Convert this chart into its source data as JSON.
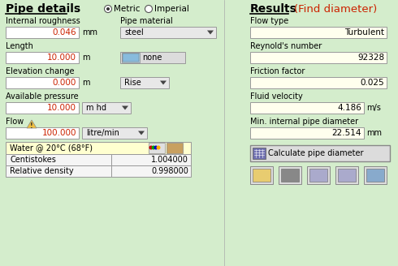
{
  "bg_color": "#d4edcc",
  "title_left": "Pipe details",
  "title_right": "Results",
  "title_right_sub": "(Find diameter)",
  "metric_label": "Metric",
  "imperial_label": "Imperial",
  "left_labels": [
    "Internal roughness",
    "Pipe material",
    "Length",
    "Elevation change",
    "Available pressure",
    "Flow"
  ],
  "left_values": [
    "0.046",
    "steel",
    "10.000",
    "0.000",
    "10.000",
    "100.000"
  ],
  "left_units": [
    "mm",
    "",
    "m",
    "m",
    "",
    ""
  ],
  "dropdown_rise": "Rise",
  "dropdown_mhd": "m hd",
  "dropdown_litre": "litre/min",
  "btn_none": "none",
  "right_fields": [
    {
      "label": "Flow type",
      "value": "Turbulent",
      "unit": ""
    },
    {
      "label": "Reynold's number",
      "value": "92328",
      "unit": ""
    },
    {
      "label": "Friction factor",
      "value": "0.025",
      "unit": ""
    },
    {
      "label": "Fluid velocity",
      "value": "4.186",
      "unit": "m/s"
    },
    {
      "label": "Min. internal pipe diameter",
      "value": "22.514",
      "unit": "mm"
    }
  ],
  "fluid_label": "Water @ 20°C (68°F)",
  "table_rows": [
    {
      "label": "Centistokes",
      "value": "1.004000"
    },
    {
      "label": "Relative density",
      "value": "0.998000"
    }
  ],
  "calc_btn": "Calculate pipe diameter",
  "input_color": "#ffffff",
  "result_color": "#ffffee",
  "input_value_color": "#cc2200",
  "result_value_color": "#000000",
  "bg_color2": "#d4edcc",
  "box_edge": "#999999",
  "dd_bg": "#e8e8e8",
  "fluid_row_bg": "#ffffd0",
  "table_row_bg": "#f5f5f5",
  "btn_bg": "#e0e0e0",
  "label_fs": 7.0,
  "value_fs": 7.5
}
